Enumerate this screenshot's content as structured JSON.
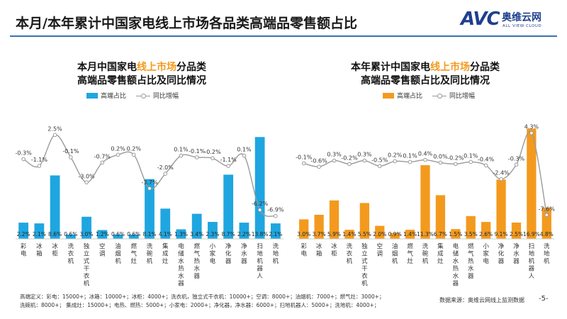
{
  "page": {
    "title": "本月/本年累计中国家电线上市场各品类高端品零售额占比",
    "logo": {
      "mark": "AVC",
      "cn": "奥维云网",
      "en": "ALL VIEW CLOUD"
    },
    "footnote_lines": [
      "高端定义：彩电：15000+；冰箱：10000+；冰柜：4000+；洗衣机，独立式干衣机：10000+；空调：8000+；油烟机：7000+；燃气灶：3000+；",
      "洗碗机：8000+；  集成灶：15000+；电热、燃热：5000+；小家电：2000+；净化器，净水器：6000+；扫地机器人：5000+；洗地机：4000+；"
    ],
    "source": "数据来源：奥维云网线上监测数据",
    "page_number": "-5-"
  },
  "chart_data": [
    {
      "type": "bar",
      "title": "本月中国家电线上市场分品类高端品零售额占比及同比情况",
      "title_parts": [
        "本月中国家电",
        "线上市场",
        "分品类",
        "高端品零售额占比及同比情况"
      ],
      "categories": [
        "彩电",
        "冰箱",
        "冰柜",
        "洗衣机",
        "独立式干衣机",
        "空调",
        "油烟机",
        "燃气灶",
        "洗碗机",
        "集成灶",
        "电储水热水器",
        "燃气热水器",
        "小家电",
        "净化器",
        "净水器",
        "扫地机器人",
        "洗地机"
      ],
      "series": [
        {
          "name": "高端占比",
          "kind": "bar",
          "color": "#1fa6e0",
          "values": [
            2.2,
            2.1,
            8.6,
            0.6,
            3.0,
            1.2,
            0.6,
            0.6,
            8.1,
            4.1,
            1.3,
            3.4,
            2.3,
            8.7,
            2.2,
            13.8,
            2.1
          ],
          "labels": [
            "2.2%",
            "2.1%",
            "8.6%",
            "0.6%",
            "3.0%",
            "1.2%",
            "0.6%",
            "0.6%",
            "8.1%",
            "4.1%",
            "1.3%",
            "3.4%",
            "2.3%",
            "8.7%",
            "2.2%",
            "13.8%",
            "2.1%"
          ]
        },
        {
          "name": "同比增幅",
          "kind": "line",
          "color": "#9a9a9a",
          "values": [
            -0.3,
            -1.1,
            2.5,
            -0.1,
            -3.0,
            -0.7,
            0.2,
            0.2,
            -3.7,
            -2.0,
            0.1,
            -0.1,
            -0.2,
            -1.1,
            0.1,
            -6.2,
            -6.9
          ],
          "labels": [
            "-0.3%",
            "-1.1%",
            "2.5%",
            "-0.1%",
            "-3.0%",
            "-0.7%",
            "0.2%",
            "0.2%",
            "-3.7%",
            "-2.0%",
            "0.1%",
            "-0.1%",
            "-0.2%",
            "-1.1%",
            "0.1%",
            "-6.2%",
            "-6.9%"
          ]
        }
      ],
      "bar_ylim": [
        0,
        14.5
      ],
      "line_ylim": [
        -7.5,
        4.5
      ]
    },
    {
      "type": "bar",
      "title": "本年累计中国家电线上市场分品类高端品零售额占比及同比情况",
      "title_parts": [
        "本年累计中国家电",
        "线上市场",
        "分品类",
        "高端品零售额占比及同比情况"
      ],
      "categories": [
        "彩电",
        "冰箱",
        "冰柜",
        "洗衣机",
        "独立式干衣机",
        "空调",
        "油烟机",
        "燃气灶",
        "洗碗机",
        "集成灶",
        "电储水热水器",
        "燃气热水器",
        "小家电",
        "净化器",
        "净水器",
        "扫地机器人",
        "洗地机"
      ],
      "series": [
        {
          "name": "高端占比",
          "kind": "bar",
          "color": "#f39a1e",
          "values": [
            3.0,
            3.7,
            5.9,
            1.4,
            5.5,
            2.0,
            0.9,
            1.4,
            11.3,
            6.7,
            1.5,
            3.5,
            2.6,
            9.1,
            2.5,
            16.9,
            4.8
          ],
          "labels": [
            "3.0%",
            "3.7%",
            "5.9%",
            "1.4%",
            "5.5%",
            "2.0%",
            "0.9%",
            "1.4%",
            "11.3%",
            "6.7%",
            "1.5%",
            "3.5%",
            "2.6%",
            "9.1%",
            "2.5%",
            "16.9%",
            "4.8%"
          ]
        },
        {
          "name": "同比增幅",
          "kind": "line",
          "color": "#9a9a9a",
          "values": [
            -0.1,
            -0.6,
            0.3,
            -0.2,
            0.3,
            -0.5,
            0.2,
            0.1,
            0.4,
            0.0,
            -0.2,
            0.1,
            -0.4,
            -2.4,
            -0.3,
            4.3,
            -7.6
          ],
          "labels": [
            "-0.1%",
            "-0.6%",
            "0.3%",
            "-0.2%",
            "0.3%",
            "-0.5%",
            "0.2%",
            "0.1%",
            "0.4%",
            "0.0%",
            "-0.2%",
            "0.1%",
            "-0.4%",
            "-2.4%",
            "-0.3%",
            "4.3%",
            "-7.6%"
          ]
        }
      ],
      "bar_ylim": [
        0,
        17.5
      ],
      "line_ylim": [
        -8.5,
        5.5
      ]
    }
  ]
}
